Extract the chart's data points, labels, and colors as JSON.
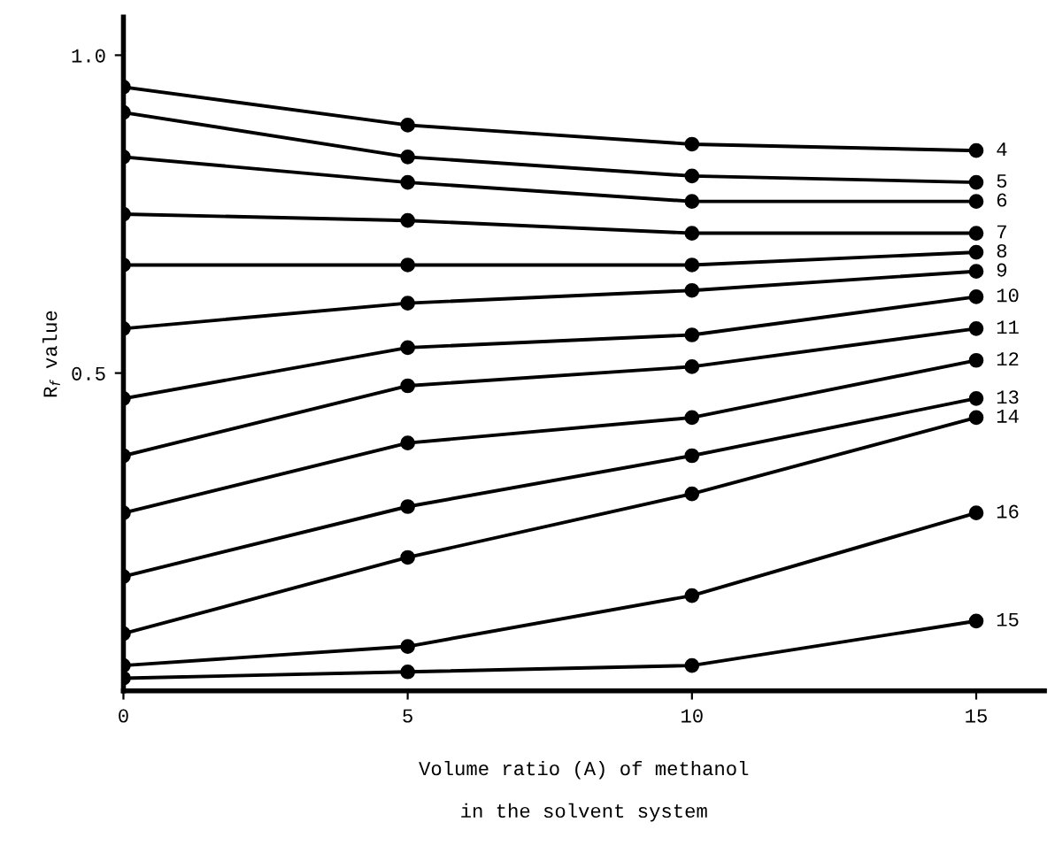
{
  "chart_data": {
    "type": "line",
    "xlabel": "Volume ratio (A) of methanol\n\nin the solvent system",
    "ylabel": "R$_{f}$ value",
    "x": [
      0,
      5,
      10,
      15
    ],
    "xlim": [
      0,
      16.2
    ],
    "xticks": [
      0,
      5,
      10,
      15
    ],
    "ylim": [
      0,
      1.06
    ],
    "yticks": [
      {
        "value": 0.5,
        "label": "0.5"
      },
      {
        "value": 1.0,
        "label": "1.0"
      }
    ],
    "marker": "circle",
    "line_style": "solid",
    "grid": false,
    "legend": false,
    "series": [
      {
        "name": "4",
        "color": "#000000",
        "values": [
          0.95,
          0.89,
          0.86,
          0.85
        ]
      },
      {
        "name": "5",
        "color": "#000000",
        "values": [
          0.91,
          0.84,
          0.81,
          0.8
        ]
      },
      {
        "name": "6",
        "color": "#000000",
        "values": [
          0.84,
          0.8,
          0.77,
          0.77
        ]
      },
      {
        "name": "7",
        "color": "#000000",
        "values": [
          0.75,
          0.74,
          0.72,
          0.72
        ]
      },
      {
        "name": "8",
        "color": "#000000",
        "values": [
          0.67,
          0.67,
          0.67,
          0.69
        ]
      },
      {
        "name": "9",
        "color": "#000000",
        "values": [
          0.57,
          0.61,
          0.63,
          0.66
        ]
      },
      {
        "name": "10",
        "color": "#000000",
        "values": [
          0.46,
          0.54,
          0.56,
          0.62
        ]
      },
      {
        "name": "11",
        "color": "#000000",
        "values": [
          0.37,
          0.48,
          0.51,
          0.57
        ]
      },
      {
        "name": "12",
        "color": "#000000",
        "values": [
          0.28,
          0.39,
          0.43,
          0.52
        ]
      },
      {
        "name": "13",
        "color": "#000000",
        "values": [
          0.18,
          0.29,
          0.37,
          0.46
        ]
      },
      {
        "name": "14",
        "color": "#000000",
        "values": [
          0.09,
          0.21,
          0.31,
          0.43
        ]
      },
      {
        "name": "16",
        "color": "#000000",
        "values": [
          0.04,
          0.07,
          0.15,
          0.28
        ]
      },
      {
        "name": "15",
        "color": "#000000",
        "values": [
          0.02,
          0.03,
          0.04,
          0.11
        ]
      }
    ]
  }
}
